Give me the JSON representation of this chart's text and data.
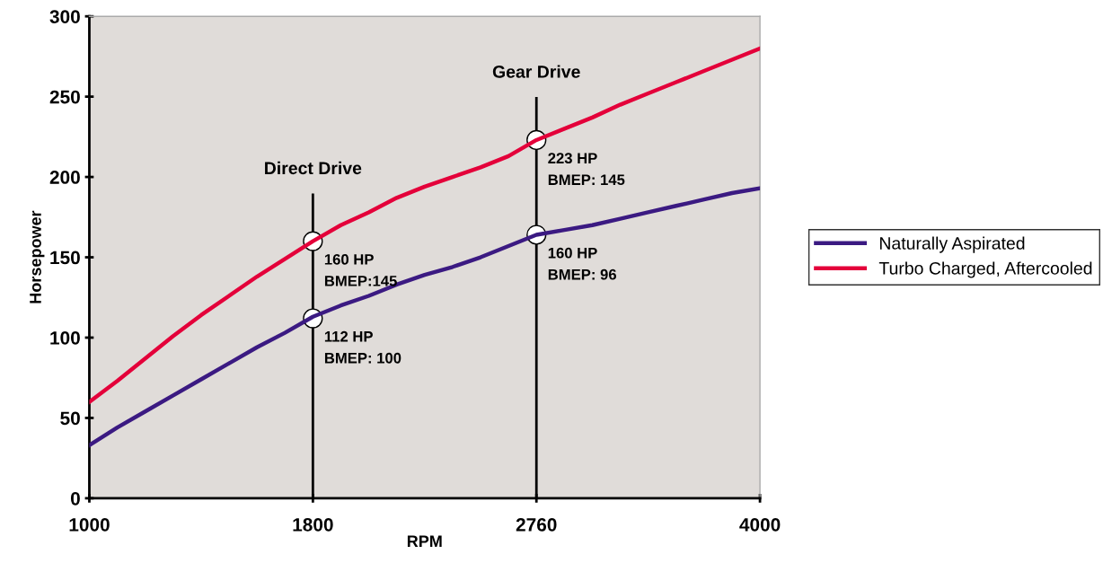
{
  "chart_data": {
    "type": "line",
    "xlabel": "RPM",
    "ylabel": "Horsepower",
    "categories": [
      "1000",
      null,
      null,
      null,
      null,
      null,
      null,
      null,
      "1800",
      null,
      null,
      null,
      null,
      null,
      null,
      null,
      "2760",
      null,
      null,
      null,
      null,
      null,
      null,
      null,
      "4000"
    ],
    "series": [
      {
        "name": "Naturally Aspirated",
        "color": "#3b1a82",
        "values": [
          33,
          44,
          54,
          64,
          74,
          84,
          94,
          103,
          113,
          120,
          126,
          133,
          139,
          144,
          150,
          157,
          164,
          167,
          170,
          174,
          178,
          182,
          186,
          190,
          193
        ]
      },
      {
        "name": "Turbo Charged, Aftercooled",
        "color": "#e4003a",
        "values": [
          60,
          73,
          87,
          101,
          114,
          126,
          138,
          149,
          160,
          170,
          178,
          187,
          194,
          200,
          206,
          213,
          223,
          230,
          237,
          245,
          252,
          259,
          266,
          273,
          280
        ]
      }
    ],
    "ylim": [
      0,
      300
    ],
    "yticks": [
      0,
      50,
      100,
      150,
      200,
      250,
      300
    ],
    "ref_lines": [
      {
        "axis": "x",
        "value": "1800",
        "label": "Direct Drive",
        "color": "#000000"
      },
      {
        "axis": "x",
        "value": "2760",
        "label": "Gear Drive",
        "color": "#000000"
      }
    ],
    "annotations": [
      {
        "text": "160 HP\nBMEP:145",
        "x": "1800",
        "y": 160
      },
      {
        "text": "112 HP\nBMEP: 100",
        "x": "1800",
        "y": 112
      },
      {
        "text": "223 HP\nBMEP: 145",
        "x": "2760",
        "y": 223
      },
      {
        "text": "160 HP\nBMEP: 96",
        "x": "2760",
        "y": 164
      }
    ],
    "legend": "right",
    "grid": false,
    "marker": "none",
    "line_style": "solid"
  }
}
